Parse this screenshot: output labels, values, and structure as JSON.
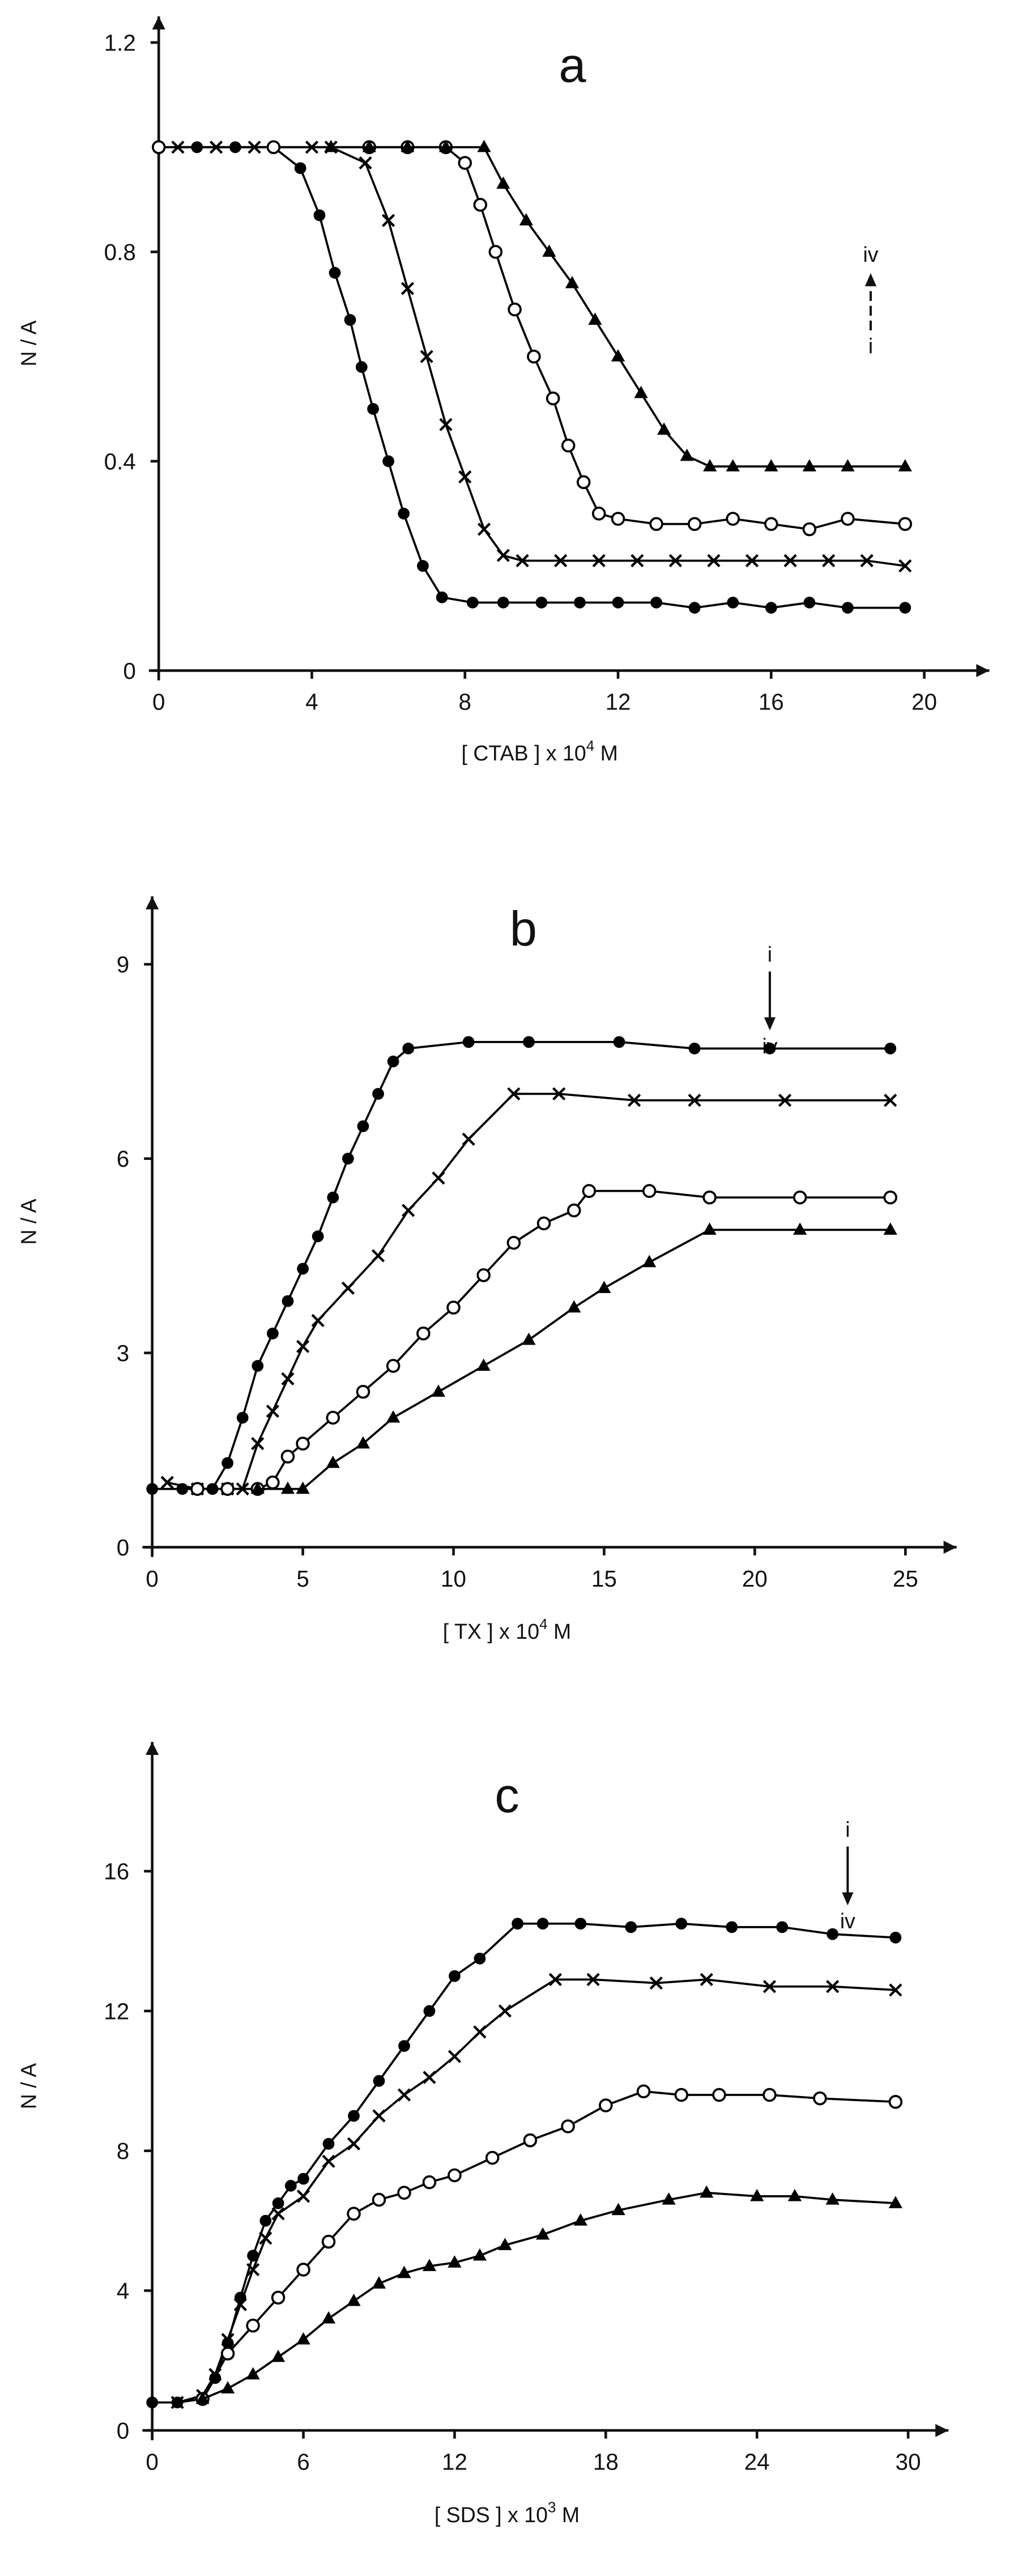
{
  "chart_data": [
    {
      "type": "scatter",
      "label": "a",
      "ylabel": "N / A",
      "xlabel": [
        "[ CTAB ] x 10",
        "4",
        " M"
      ],
      "xlim": [
        0,
        21.7
      ],
      "ylim": [
        0,
        1.25
      ],
      "xticks": [
        0,
        4,
        8,
        12,
        16,
        20
      ],
      "yticks": [
        0,
        0.4,
        0.8,
        1.2
      ],
      "annotation": {
        "top": "iv",
        "bottom": "i",
        "arrow": "up",
        "x": 18.6
      },
      "series": [
        {
          "marker": "filled-circle",
          "color": "#000",
          "x": [
            0,
            1,
            2,
            3,
            3.7,
            4.2,
            4.6,
            5.0,
            5.3,
            5.6,
            6.0,
            6.4,
            6.9,
            7.4,
            8.2,
            9,
            10,
            11,
            12,
            13,
            14,
            15,
            16,
            17,
            18,
            19.5
          ],
          "y": [
            1,
            1,
            1,
            1,
            0.96,
            0.87,
            0.76,
            0.67,
            0.58,
            0.5,
            0.4,
            0.3,
            0.2,
            0.14,
            0.13,
            0.13,
            0.13,
            0.13,
            0.13,
            0.13,
            0.12,
            0.13,
            0.12,
            0.13,
            0.12,
            0.12
          ]
        },
        {
          "marker": "cross",
          "color": "#000",
          "x": [
            0.5,
            1.5,
            2.5,
            4,
            4.5,
            5.4,
            6.0,
            6.5,
            7.0,
            7.5,
            8.0,
            8.5,
            9.0,
            9.5,
            10.5,
            11.5,
            12.5,
            13.5,
            14.5,
            15.5,
            16.5,
            17.5,
            18.5,
            19.5
          ],
          "y": [
            1,
            1,
            1,
            1,
            1,
            0.97,
            0.86,
            0.73,
            0.6,
            0.47,
            0.37,
            0.27,
            0.22,
            0.21,
            0.21,
            0.21,
            0.21,
            0.21,
            0.21,
            0.21,
            0.21,
            0.21,
            0.21,
            0.2
          ]
        },
        {
          "marker": "open-circle",
          "color": "#000",
          "x": [
            0,
            3,
            5.5,
            6.5,
            7.5,
            8.0,
            8.4,
            8.8,
            9.3,
            9.8,
            10.3,
            10.7,
            11.1,
            11.5,
            12,
            13,
            14,
            15,
            16,
            17,
            18,
            19.5
          ],
          "y": [
            1,
            1,
            1,
            1,
            1,
            0.97,
            0.89,
            0.8,
            0.69,
            0.6,
            0.52,
            0.43,
            0.36,
            0.3,
            0.29,
            0.28,
            0.28,
            0.29,
            0.28,
            0.27,
            0.29,
            0.28
          ]
        },
        {
          "marker": "filled-triangle",
          "color": "#000",
          "x": [
            4.5,
            5.5,
            6.5,
            7.5,
            8.5,
            9,
            9.6,
            10.2,
            10.8,
            11.4,
            12,
            12.6,
            13.2,
            13.8,
            14.4,
            15,
            16,
            17,
            18,
            19.5
          ],
          "y": [
            1,
            1,
            1,
            1,
            1,
            0.93,
            0.86,
            0.8,
            0.74,
            0.67,
            0.6,
            0.53,
            0.46,
            0.41,
            0.39,
            0.39,
            0.39,
            0.39,
            0.39,
            0.39
          ]
        }
      ]
    },
    {
      "type": "scatter",
      "label": "b",
      "ylabel": "N / A",
      "xlabel": [
        "[ TX ] x 10",
        "4",
        " M"
      ],
      "xlim": [
        0,
        26.7
      ],
      "ylim": [
        0,
        10.05
      ],
      "xticks": [
        0,
        5,
        10,
        15,
        20,
        25
      ],
      "yticks": [
        0,
        3,
        6,
        9
      ],
      "annotation": {
        "top": "i",
        "bottom": "iv",
        "arrow": "down",
        "x": 20.5
      },
      "series": [
        {
          "marker": "filled-circle",
          "color": "#000",
          "x": [
            0,
            1,
            2,
            2.5,
            3,
            3.5,
            4,
            4.5,
            5,
            5.5,
            6,
            6.5,
            7,
            7.5,
            8,
            8.5,
            10.5,
            12.5,
            15.5,
            18,
            20.5,
            24.5
          ],
          "y": [
            0.9,
            0.9,
            0.9,
            1.3,
            2.0,
            2.8,
            3.3,
            3.8,
            4.3,
            4.8,
            5.4,
            6.0,
            6.5,
            7.0,
            7.5,
            7.7,
            7.8,
            7.8,
            7.8,
            7.7,
            7.7,
            7.7
          ]
        },
        {
          "marker": "cross",
          "color": "#000",
          "x": [
            0.5,
            1.5,
            2.5,
            3,
            3.5,
            4,
            4.5,
            5,
            5.5,
            6.5,
            7.5,
            8.5,
            9.5,
            10.5,
            12,
            13.5,
            16,
            18,
            21,
            24.5
          ],
          "y": [
            1.0,
            0.9,
            0.9,
            0.9,
            1.6,
            2.1,
            2.6,
            3.1,
            3.5,
            4.0,
            4.5,
            5.2,
            5.7,
            6.3,
            7.0,
            7.0,
            6.9,
            6.9,
            6.9,
            6.9
          ]
        },
        {
          "marker": "open-circle",
          "color": "#000",
          "x": [
            1.5,
            2.5,
            3.5,
            4,
            4.5,
            5,
            6,
            7,
            8,
            9,
            10,
            11,
            12,
            13,
            14,
            14.5,
            16.5,
            18.5,
            21.5,
            24.5
          ],
          "y": [
            0.9,
            0.9,
            0.9,
            1.0,
            1.4,
            1.6,
            2.0,
            2.4,
            2.8,
            3.3,
            3.7,
            4.2,
            4.7,
            5.0,
            5.2,
            5.5,
            5.5,
            5.4,
            5.4,
            5.4
          ]
        },
        {
          "marker": "filled-triangle",
          "color": "#000",
          "x": [
            3.5,
            4.5,
            5,
            6,
            7,
            8,
            9.5,
            11,
            12.5,
            14,
            15,
            16.5,
            18.5,
            21.5,
            24.5
          ],
          "y": [
            0.9,
            0.9,
            0.9,
            1.3,
            1.6,
            2.0,
            2.4,
            2.8,
            3.2,
            3.7,
            4.0,
            4.4,
            4.9,
            4.9,
            4.9
          ]
        }
      ]
    },
    {
      "type": "scatter",
      "label": "c",
      "ylabel": "N / A",
      "xlabel": [
        "[ SDS ] x 10",
        "3",
        " M"
      ],
      "xlim": [
        0,
        31.6
      ],
      "ylim": [
        0,
        19.7
      ],
      "xticks": [
        0,
        6,
        12,
        18,
        24,
        30
      ],
      "yticks": [
        0,
        4,
        8,
        12,
        16
      ],
      "annotation": {
        "top": "i",
        "bottom": "iv",
        "arrow": "down",
        "x": 27.6
      },
      "series": [
        {
          "marker": "filled-circle",
          "color": "#000",
          "x": [
            0,
            1,
            2,
            2.5,
            3,
            3.5,
            4,
            4.5,
            5,
            5.5,
            6,
            7,
            8,
            9,
            10,
            11,
            12,
            13,
            14.5,
            15.5,
            17,
            19,
            21,
            23,
            25,
            27,
            29.5
          ],
          "y": [
            0.8,
            0.8,
            0.9,
            1.5,
            2.5,
            3.8,
            5,
            6,
            6.5,
            7,
            7.2,
            8.2,
            9.0,
            10,
            11,
            12,
            13,
            13.5,
            14.5,
            14.5,
            14.5,
            14.4,
            14.5,
            14.4,
            14.4,
            14.2,
            14.1
          ]
        },
        {
          "marker": "cross",
          "color": "#000",
          "x": [
            1,
            2,
            2.5,
            3,
            3.5,
            4,
            4.5,
            5,
            6,
            7,
            8,
            9,
            10,
            11,
            12,
            13,
            14,
            16,
            17.5,
            20,
            22,
            24.5,
            27,
            29.5
          ],
          "y": [
            0.8,
            1.0,
            1.6,
            2.6,
            3.6,
            4.6,
            5.5,
            6.2,
            6.7,
            7.7,
            8.2,
            9,
            9.6,
            10.1,
            10.7,
            11.4,
            12.0,
            12.9,
            12.9,
            12.8,
            12.9,
            12.7,
            12.7,
            12.6
          ]
        },
        {
          "marker": "open-circle",
          "color": "#000",
          "x": [
            2,
            3,
            4,
            5,
            6,
            7,
            8,
            9,
            10,
            11,
            12,
            13.5,
            15,
            16.5,
            18,
            19.5,
            21,
            22.5,
            24.5,
            26.5,
            29.5
          ],
          "y": [
            0.9,
            2.2,
            3.0,
            3.8,
            4.6,
            5.4,
            6.2,
            6.6,
            6.8,
            7.1,
            7.3,
            7.8,
            8.3,
            8.7,
            9.3,
            9.7,
            9.6,
            9.6,
            9.6,
            9.5,
            9.4
          ]
        },
        {
          "marker": "filled-triangle",
          "color": "#000",
          "x": [
            2,
            3,
            4,
            5,
            6,
            7,
            8,
            9,
            10,
            11,
            12,
            13,
            14,
            15.5,
            17,
            18.5,
            20.5,
            22,
            24,
            25.5,
            27,
            29.5
          ],
          "y": [
            0.9,
            1.2,
            1.6,
            2.1,
            2.6,
            3.2,
            3.7,
            4.2,
            4.5,
            4.7,
            4.8,
            5.0,
            5.3,
            5.6,
            6.0,
            6.3,
            6.6,
            6.8,
            6.7,
            6.7,
            6.6,
            6.5
          ]
        }
      ]
    }
  ]
}
